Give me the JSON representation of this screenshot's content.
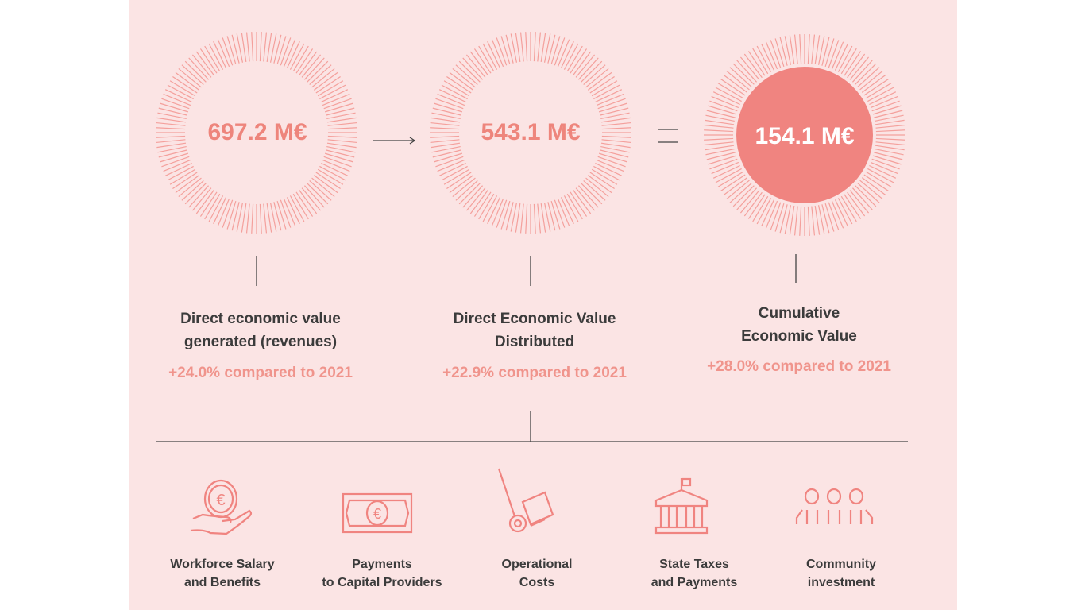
{
  "colors": {
    "accent": "#f08480",
    "background": "#fbe4e4",
    "text": "#3b3b3b"
  },
  "metrics": [
    {
      "value": "697.2 M€",
      "label_line1": "Direct economic value",
      "label_line2": "generated (revenues)",
      "change": "+24.0% compared to 2021"
    },
    {
      "value": "543.1 M€",
      "label_line1": "Direct Economic Value",
      "label_line2": "Distributed",
      "change": "+22.9% compared to 2021"
    },
    {
      "value": "154.1 M€",
      "label_line1": "Cumulative",
      "label_line2": "Economic Value",
      "change": "+28.0% compared to 2021"
    }
  ],
  "operators": [
    "arrow-right",
    "equals"
  ],
  "categories": [
    {
      "icon": "hand-euro-coin-icon",
      "line1": "Workforce Salary",
      "line2": "and Benefits"
    },
    {
      "icon": "euro-banknote-icon",
      "line1": "Payments",
      "line2": "to Capital Providers"
    },
    {
      "icon": "hand-truck-icon",
      "line1": "Operational",
      "line2": "Costs"
    },
    {
      "icon": "government-building-icon",
      "line1": "State Taxes",
      "line2": "and Payments"
    },
    {
      "icon": "community-people-icon",
      "line1": "Community",
      "line2": "investment"
    }
  ]
}
